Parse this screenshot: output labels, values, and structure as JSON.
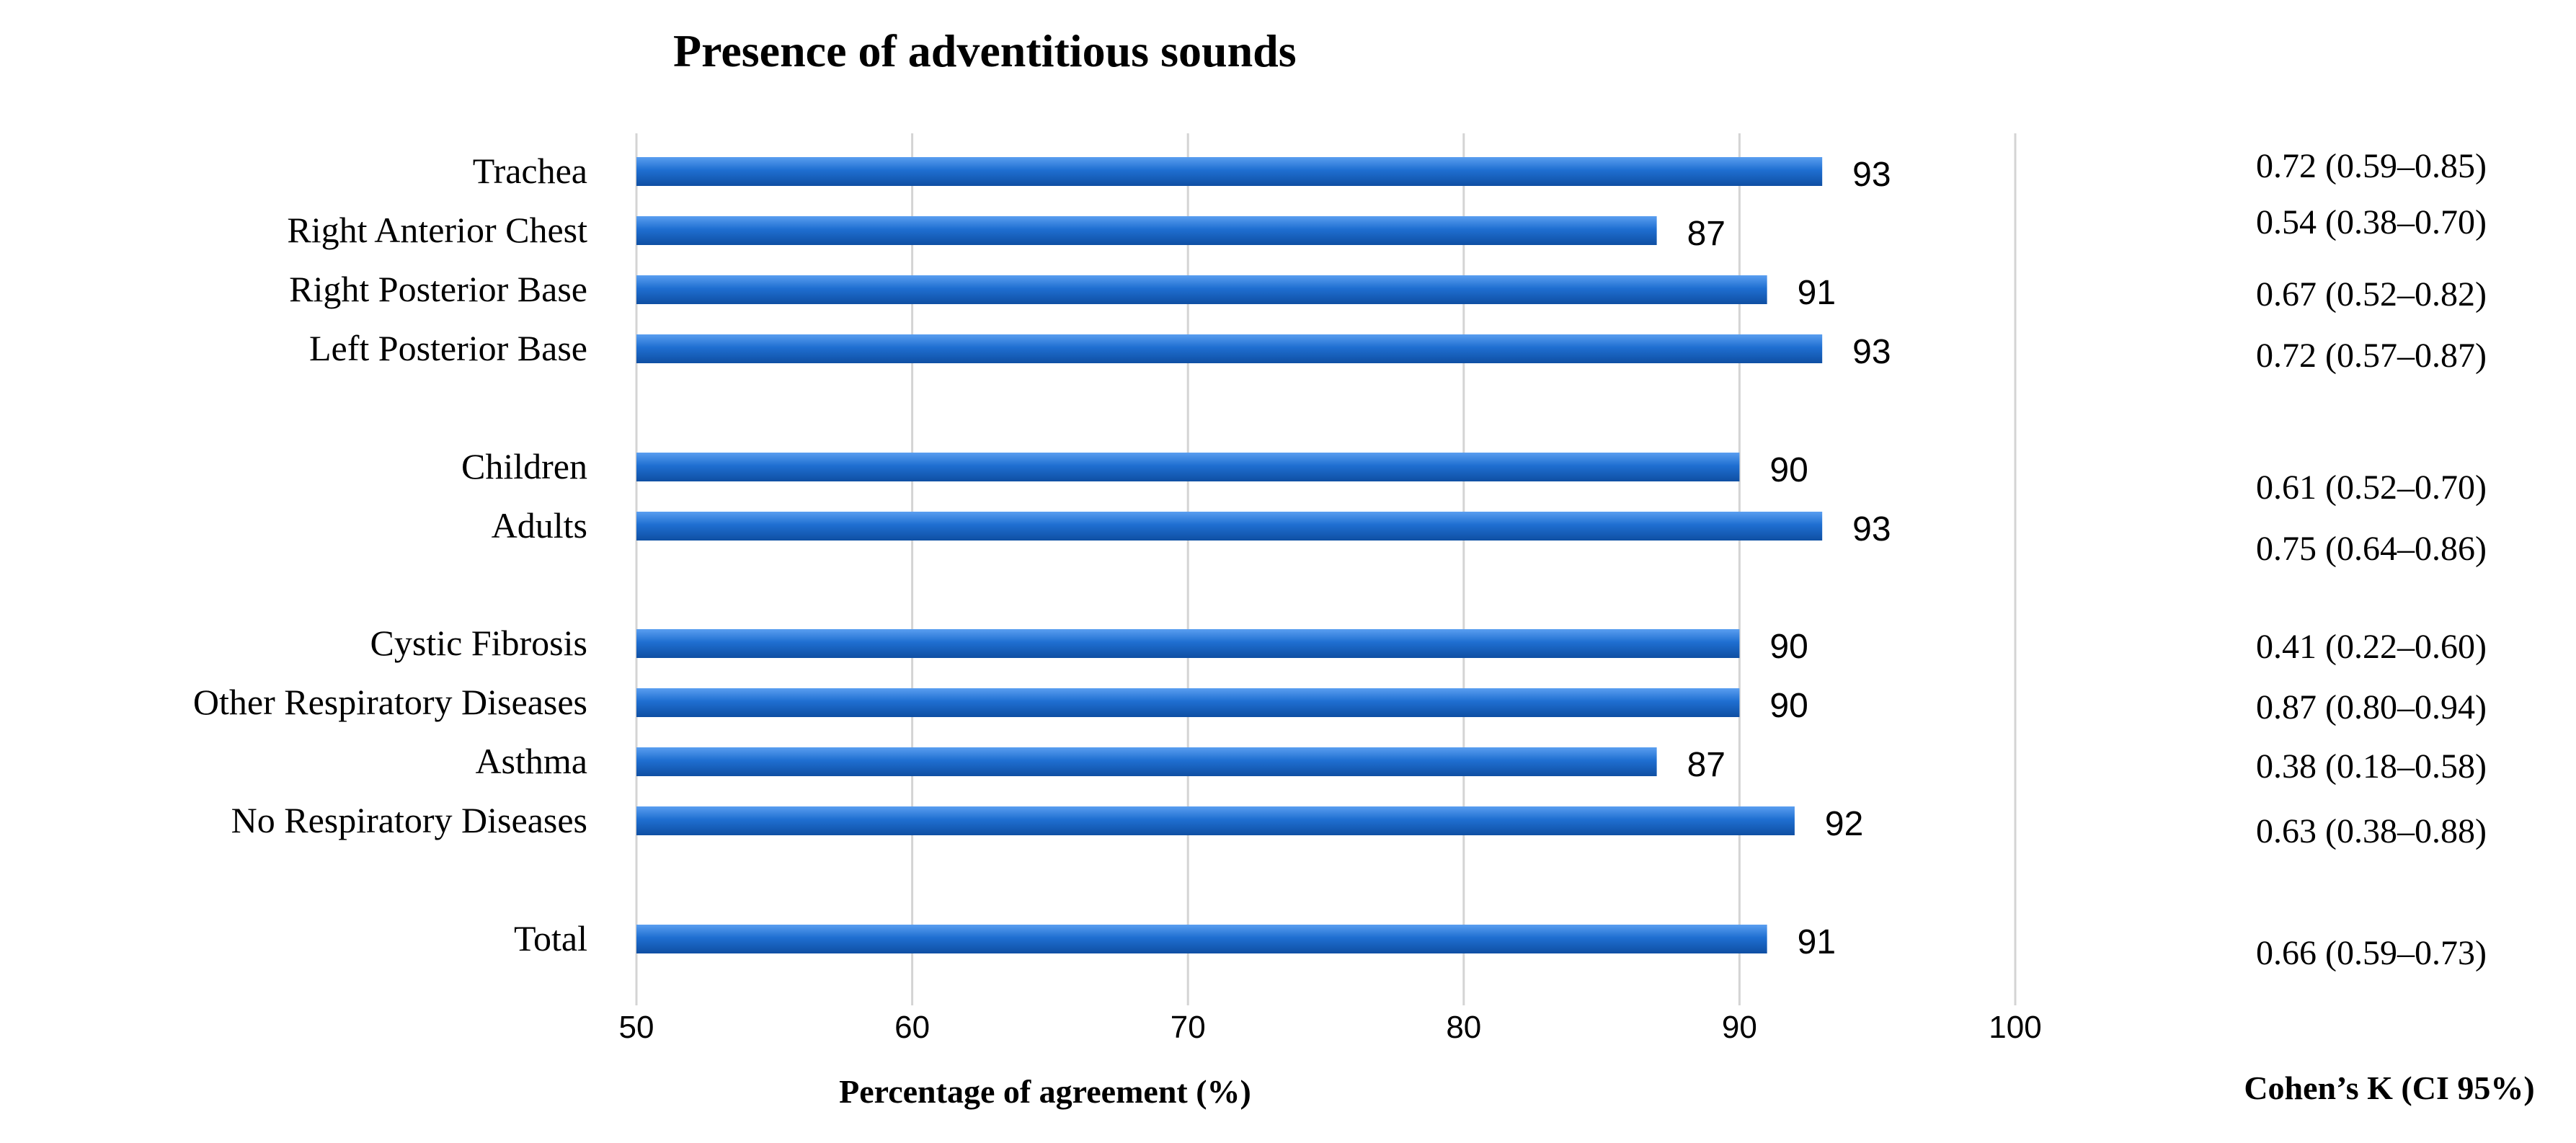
{
  "chart_data": {
    "type": "bar",
    "orientation": "horizontal",
    "title": "Presence of adventitious sounds",
    "xlabel": "Percentage of agreement (%)",
    "kappa_header": "Cohen’s K (CI 95%)",
    "xlim": [
      50,
      100
    ],
    "xticks": [
      "50",
      "60",
      "70",
      "80",
      "90",
      "100"
    ],
    "grid": true,
    "bar_color": "#1f6fd1",
    "rows": [
      {
        "label": "Trachea",
        "value": 93,
        "value_label": "93",
        "kappa": "0.72 (0.59–0.85)"
      },
      {
        "label": "Right Anterior Chest",
        "value": 87,
        "value_label": "87",
        "kappa": "0.54 (0.38–0.70)"
      },
      {
        "label": "Right Posterior Base",
        "value": 91,
        "value_label": "91",
        "kappa": "0.67 (0.52–0.82)"
      },
      {
        "label": "Left Posterior Base",
        "value": 93,
        "value_label": "93",
        "kappa": "0.72 (0.57–0.87)"
      },
      {
        "label": "Children",
        "value": 90,
        "value_label": "90",
        "kappa": "0.61 (0.52–0.70)"
      },
      {
        "label": "Adults",
        "value": 93,
        "value_label": "93",
        "kappa": "0.75 (0.64–0.86)"
      },
      {
        "label": "Cystic Fibrosis",
        "value": 90,
        "value_label": "90",
        "kappa": "0.41 (0.22–0.60)"
      },
      {
        "label": "Other Respiratory Diseases",
        "value": 90,
        "value_label": "90",
        "kappa": "0.87 (0.80–0.94)"
      },
      {
        "label": "Asthma",
        "value": 87,
        "value_label": "87",
        "kappa": "0.38 (0.18–0.58)"
      },
      {
        "label": "No Respiratory Diseases",
        "value": 92,
        "value_label": "92",
        "kappa": "0.63 (0.38–0.88)"
      },
      {
        "label": "Total",
        "value": 91,
        "value_label": "91",
        "kappa": "0.66 (0.59–0.73)"
      }
    ]
  }
}
